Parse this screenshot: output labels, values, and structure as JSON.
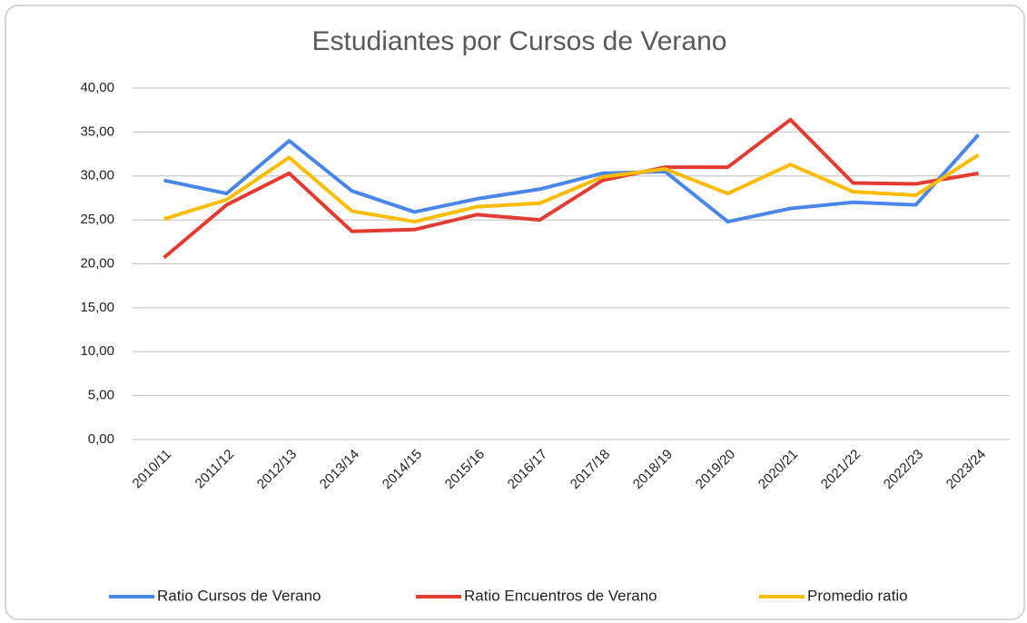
{
  "chart_data": {
    "type": "line",
    "title": "Estudiantes por Cursos de Verano",
    "categories": [
      "2010/11",
      "2011/12",
      "2012/13",
      "2013/14",
      "2014/15",
      "2015/16",
      "2016/17",
      "2017/18",
      "2018/19",
      "2019/20",
      "2020/21",
      "2021/22",
      "2022/23",
      "2023/24"
    ],
    "series": [
      {
        "name": "Ratio Cursos de Verano",
        "color": "#4a86e8",
        "values": [
          29.5,
          28.0,
          34.0,
          28.3,
          25.9,
          27.4,
          28.5,
          30.3,
          30.5,
          24.8,
          26.3,
          27.0,
          26.7,
          34.7
        ]
      },
      {
        "name": "Ratio Encuentros de Verano",
        "color": "#e23d33",
        "values": [
          20.7,
          26.7,
          30.3,
          23.7,
          23.9,
          25.6,
          25.0,
          29.5,
          31.0,
          31.0,
          36.4,
          29.2,
          29.1,
          30.3
        ]
      },
      {
        "name": "Promedio ratio",
        "color": "#fbbc04",
        "values": [
          25.1,
          27.3,
          32.1,
          26.0,
          24.8,
          26.5,
          26.9,
          29.9,
          30.8,
          28.0,
          31.3,
          28.2,
          27.8,
          32.4
        ]
      }
    ],
    "ylim": [
      0,
      40
    ],
    "yticks": [
      {
        "value": 0,
        "label": "0,00"
      },
      {
        "value": 5,
        "label": "5,00"
      },
      {
        "value": 10,
        "label": "10,00"
      },
      {
        "value": 15,
        "label": "15,00"
      },
      {
        "value": 20,
        "label": "20,00"
      },
      {
        "value": 25,
        "label": "25,00"
      },
      {
        "value": 30,
        "label": "30,00"
      },
      {
        "value": 35,
        "label": "35,00"
      },
      {
        "value": 40,
        "label": "40,00"
      }
    ],
    "grid": true,
    "legend": "bottom"
  }
}
